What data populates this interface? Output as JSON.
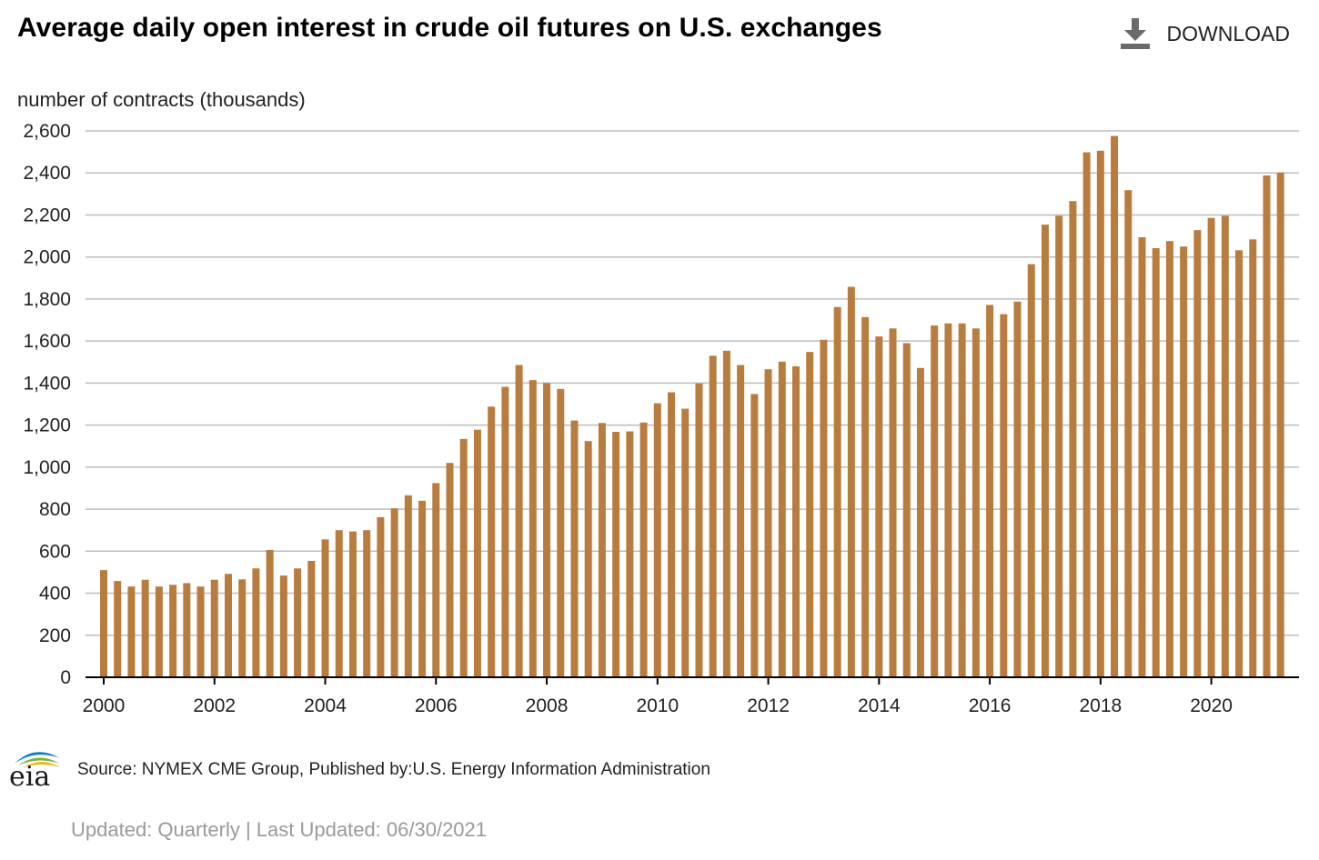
{
  "header": {
    "title": "Average daily open interest in crude oil futures on U.S. exchanges",
    "download_label": "DOWNLOAD",
    "download_icon": "download-icon"
  },
  "footer": {
    "logo_text": "eia",
    "source": "Source: NYMEX CME Group, Published by:U.S. Energy Information Administration",
    "updated": "Updated: Quarterly | Last Updated: 06/30/2021"
  },
  "colors": {
    "bar": "#b87d3e",
    "grid": "#bdbdbd",
    "axis": "#000000"
  },
  "chart_data": {
    "type": "bar",
    "title": "Average daily open interest in crude oil futures on U.S. exchanges",
    "xlabel": "",
    "ylabel": "number of contracts (thousands)",
    "ylim": [
      0,
      2600
    ],
    "yticks": [
      0,
      200,
      400,
      600,
      800,
      1000,
      1200,
      1400,
      1600,
      1800,
      2000,
      2200,
      2400,
      2600
    ],
    "ytick_labels": [
      "0",
      "200",
      "400",
      "600",
      "800",
      "1,000",
      "1,200",
      "1,400",
      "1,600",
      "1,800",
      "2,000",
      "2,200",
      "2,400",
      "2,600"
    ],
    "xtick_labels": [
      "2000",
      "2002",
      "2004",
      "2006",
      "2008",
      "2010",
      "2012",
      "2014",
      "2016",
      "2018",
      "2020"
    ],
    "grid": true,
    "legend": "none",
    "categories": [
      "2000Q1",
      "2000Q2",
      "2000Q3",
      "2000Q4",
      "2001Q1",
      "2001Q2",
      "2001Q3",
      "2001Q4",
      "2002Q1",
      "2002Q2",
      "2002Q3",
      "2002Q4",
      "2003Q1",
      "2003Q2",
      "2003Q3",
      "2003Q4",
      "2004Q1",
      "2004Q2",
      "2004Q3",
      "2004Q4",
      "2005Q1",
      "2005Q2",
      "2005Q3",
      "2005Q4",
      "2006Q1",
      "2006Q2",
      "2006Q3",
      "2006Q4",
      "2007Q1",
      "2007Q2",
      "2007Q3",
      "2007Q4",
      "2008Q1",
      "2008Q2",
      "2008Q3",
      "2008Q4",
      "2009Q1",
      "2009Q2",
      "2009Q3",
      "2009Q4",
      "2010Q1",
      "2010Q2",
      "2010Q3",
      "2010Q4",
      "2011Q1",
      "2011Q2",
      "2011Q3",
      "2011Q4",
      "2012Q1",
      "2012Q2",
      "2012Q3",
      "2012Q4",
      "2013Q1",
      "2013Q2",
      "2013Q3",
      "2013Q4",
      "2014Q1",
      "2014Q2",
      "2014Q3",
      "2014Q4",
      "2015Q1",
      "2015Q2",
      "2015Q3",
      "2015Q4",
      "2016Q1",
      "2016Q2",
      "2016Q3",
      "2016Q4",
      "2017Q1",
      "2017Q2",
      "2017Q3",
      "2017Q4",
      "2018Q1",
      "2018Q2",
      "2018Q3",
      "2018Q4",
      "2019Q1",
      "2019Q2",
      "2019Q3",
      "2019Q4",
      "2020Q1",
      "2020Q2",
      "2020Q3",
      "2020Q4",
      "2021Q1",
      "2021Q2"
    ],
    "values": [
      510,
      458,
      432,
      464,
      432,
      440,
      448,
      432,
      464,
      492,
      466,
      518,
      606,
      484,
      518,
      554,
      656,
      700,
      694,
      700,
      762,
      804,
      866,
      840,
      924,
      1020,
      1134,
      1178,
      1288,
      1382,
      1486,
      1414,
      1400,
      1372,
      1222,
      1124,
      1210,
      1168,
      1170,
      1212,
      1304,
      1356,
      1278,
      1398,
      1530,
      1554,
      1486,
      1348,
      1466,
      1502,
      1480,
      1548,
      1606,
      1762,
      1858,
      1714,
      1622,
      1660,
      1590,
      1472,
      1674,
      1684,
      1684,
      1660,
      1772,
      1728,
      1788,
      1966,
      2154,
      2196,
      2266,
      2498,
      2506,
      2576,
      2318,
      2094,
      2042,
      2076,
      2050,
      2128,
      2186,
      2196,
      2032,
      2084,
      2388,
      2402
    ]
  }
}
